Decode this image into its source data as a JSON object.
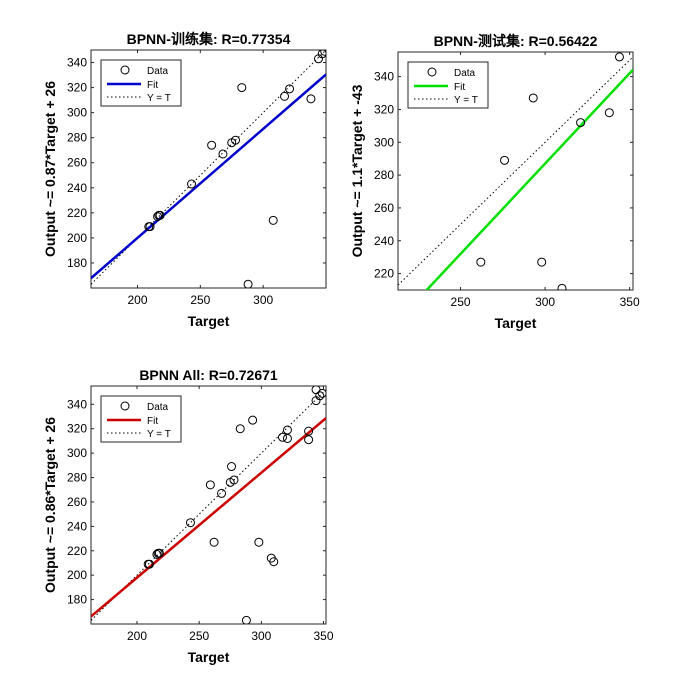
{
  "chart_data": [
    {
      "type": "scatter",
      "title": "BPNN-训练集: R=0.77354",
      "xlabel": "Target",
      "ylabel": "Output ~= 0.87*Target + 26",
      "xlim": [
        163,
        350
      ],
      "ylim": [
        160,
        350
      ],
      "xticks": [
        200,
        250,
        300
      ],
      "yticks": [
        180,
        200,
        220,
        240,
        260,
        280,
        300,
        320,
        340
      ],
      "grid": false,
      "legend_position": "top-left",
      "legend": [
        "Data",
        "Fit",
        "Y = T"
      ],
      "fit_color": "#0000cc",
      "fit": {
        "slope": 0.87,
        "intercept": 26
      },
      "points": [
        [
          209,
          209
        ],
        [
          210,
          209
        ],
        [
          216,
          217
        ],
        [
          217,
          218
        ],
        [
          218,
          218
        ],
        [
          243,
          243
        ],
        [
          259,
          274
        ],
        [
          268,
          267
        ],
        [
          275,
          276
        ],
        [
          278,
          278
        ],
        [
          283,
          320
        ],
        [
          288,
          163
        ],
        [
          308,
          214
        ],
        [
          317,
          313
        ],
        [
          321,
          319
        ],
        [
          338,
          311
        ],
        [
          344,
          343
        ],
        [
          347,
          347
        ],
        [
          349,
          349
        ]
      ]
    },
    {
      "type": "scatter",
      "title": "BPNN-测试集: R=0.56422",
      "xlabel": "Target",
      "ylabel": "Output ~= 1.1*Target + -43",
      "xlim": [
        213,
        352
      ],
      "ylim": [
        210,
        355
      ],
      "xticks": [
        250,
        300,
        350
      ],
      "yticks": [
        220,
        240,
        260,
        280,
        300,
        320,
        340
      ],
      "grid": false,
      "legend_position": "top-left",
      "legend": [
        "Data",
        "Fit",
        "Y = T"
      ],
      "fit_color": "#00e000",
      "fit": {
        "slope": 1.1,
        "intercept": -43
      },
      "points": [
        [
          262,
          227
        ],
        [
          276,
          289
        ],
        [
          293,
          327
        ],
        [
          298,
          227
        ],
        [
          310,
          211
        ],
        [
          321,
          312
        ],
        [
          338,
          318
        ],
        [
          344,
          352
        ]
      ]
    },
    {
      "type": "scatter",
      "title": "BPNN All: R=0.72671",
      "xlabel": "Target",
      "ylabel": "Output ~= 0.86*Target + 26",
      "xlim": [
        163,
        352
      ],
      "ylim": [
        160,
        355
      ],
      "xticks": [
        200,
        250,
        300,
        350
      ],
      "yticks": [
        180,
        200,
        220,
        240,
        260,
        280,
        300,
        320,
        340
      ],
      "grid": false,
      "legend_position": "top-left",
      "legend": [
        "Data",
        "Fit",
        "Y = T"
      ],
      "fit_color": "#cc0000",
      "fit": {
        "slope": 0.86,
        "intercept": 26
      },
      "points": [
        [
          209,
          209
        ],
        [
          210,
          209
        ],
        [
          216,
          217
        ],
        [
          217,
          218
        ],
        [
          218,
          218
        ],
        [
          243,
          243
        ],
        [
          259,
          274
        ],
        [
          262,
          227
        ],
        [
          268,
          267
        ],
        [
          275,
          276
        ],
        [
          276,
          289
        ],
        [
          278,
          278
        ],
        [
          283,
          320
        ],
        [
          288,
          163
        ],
        [
          293,
          327
        ],
        [
          298,
          227
        ],
        [
          308,
          214
        ],
        [
          310,
          211
        ],
        [
          317,
          313
        ],
        [
          321,
          319
        ],
        [
          321,
          312
        ],
        [
          338,
          311
        ],
        [
          338,
          318
        ],
        [
          344,
          343
        ],
        [
          344,
          352
        ],
        [
          347,
          347
        ],
        [
          349,
          349
        ]
      ]
    }
  ]
}
